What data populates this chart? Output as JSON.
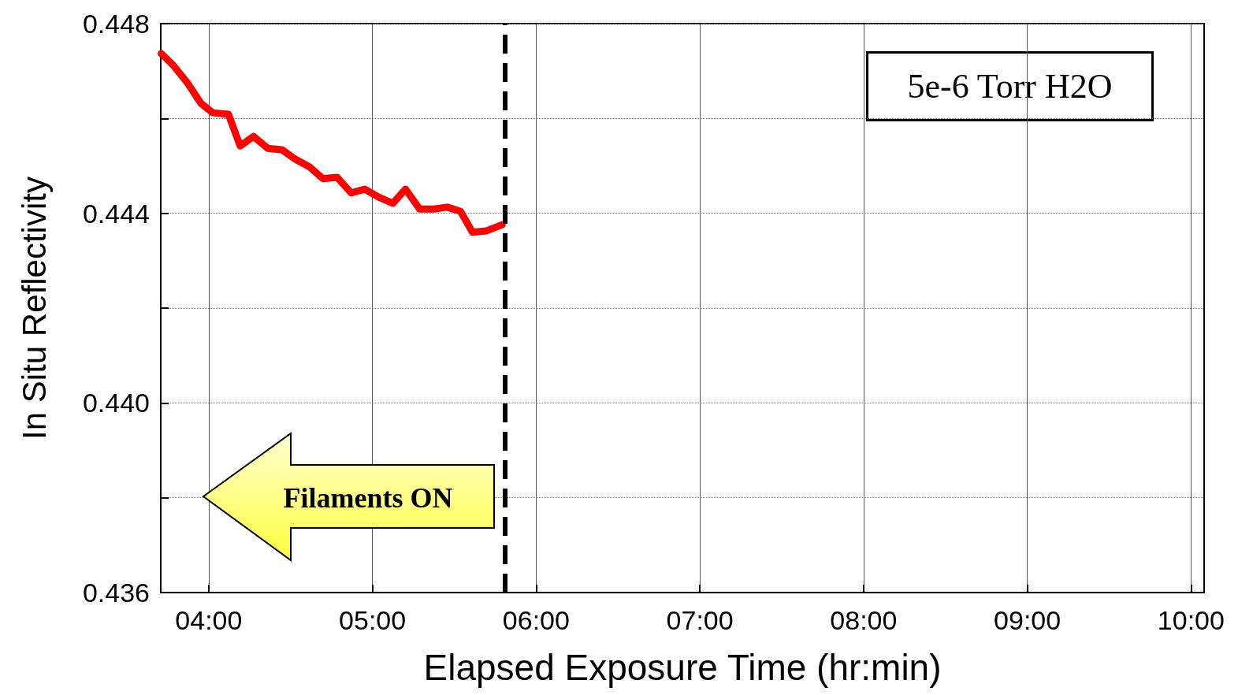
{
  "chart_data": {
    "type": "line",
    "xlabel": "Elapsed Exposure Time (hr:min)",
    "ylabel": "In Situ Reflectivity",
    "x": [
      3.71,
      3.784,
      3.87,
      3.952,
      4.024,
      4.12,
      4.192,
      4.274,
      4.361,
      4.447,
      4.529,
      4.615,
      4.697,
      4.784,
      4.87,
      4.952,
      5.038,
      5.125,
      5.202,
      5.288,
      5.375,
      5.457,
      5.538,
      5.611,
      5.697,
      5.793
    ],
    "series": [
      {
        "color": "#ff0000",
        "values": [
          0.44737,
          0.44712,
          0.44675,
          0.44632,
          0.44612,
          0.44609,
          0.44542,
          0.44562,
          0.44537,
          0.44534,
          0.44514,
          0.44498,
          0.44473,
          0.44476,
          0.44443,
          0.44451,
          0.44434,
          0.44421,
          0.44451,
          0.44409,
          0.44409,
          0.44413,
          0.44404,
          0.4436,
          0.44363,
          0.44376
        ]
      }
    ],
    "xlim": [
      3.707,
      10.08
    ],
    "xticks": [
      {
        "value": 4,
        "label": "04:00"
      },
      {
        "value": 5,
        "label": "05:00"
      },
      {
        "value": 6,
        "label": "06:00"
      },
      {
        "value": 7,
        "label": "07:00"
      },
      {
        "value": 8,
        "label": "08:00"
      },
      {
        "value": 9,
        "label": "09:00"
      },
      {
        "value": 10,
        "label": "10:00"
      }
    ],
    "ylim": [
      0.436,
      0.448
    ],
    "yticks": [
      {
        "value": 0.436,
        "label": "0.436"
      },
      {
        "value": 0.438,
        "label": null
      },
      {
        "value": 0.44,
        "label": "0.440"
      },
      {
        "value": 0.442,
        "label": null
      },
      {
        "value": 0.444,
        "label": "0.444"
      },
      {
        "value": 0.446,
        "label": null
      },
      {
        "value": 0.448,
        "label": "0.448"
      }
    ],
    "ref_lines": [
      {
        "axis": "x",
        "value": 5.808,
        "color": "#000000",
        "line_style": "dashed"
      }
    ],
    "annotations": [
      "5e-6 Torr H2O",
      "Filaments ON"
    ],
    "grid": true,
    "line_style": "solid"
  }
}
